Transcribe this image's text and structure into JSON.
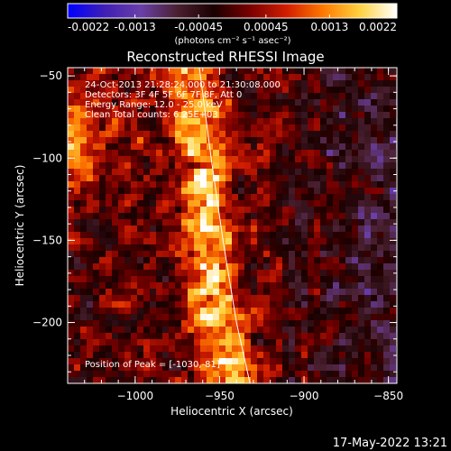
{
  "colors": {
    "background": "#000000",
    "foreground": "#ffffff",
    "colorbar_stops": [
      "#0000ff",
      "#3f1fb4",
      "#6a3fa8",
      "#4a2030",
      "#1a0000",
      "#7a0000",
      "#d21e00",
      "#ff7a00",
      "#ffd240",
      "#ffffff"
    ]
  },
  "colorbar": {
    "min": -0.0022,
    "max": 0.0022,
    "ticks": [
      {
        "value": -0.0022,
        "label": "-0.0022"
      },
      {
        "value": -0.0013,
        "label": "-0.0013"
      },
      {
        "value": -0.00045,
        "label": "-0.00045"
      },
      {
        "value": 0.00045,
        "label": "0.00045"
      },
      {
        "value": 0.0013,
        "label": "0.0013"
      },
      {
        "value": 0.0022,
        "label": "0.0022"
      }
    ],
    "unit_label": "(photons cm⁻² s⁻¹ asec⁻²)"
  },
  "chart_data": {
    "type": "heatmap",
    "title": "Reconstructed RHESSI Image",
    "xlabel": "Heliocentric X (arcsec)",
    "ylabel": "Heliocentric Y (arcsec)",
    "xlim": [
      -1040,
      -845
    ],
    "ylim": [
      -237,
      -45
    ],
    "x_ticks": [
      {
        "value": -1000,
        "label": "−1000"
      },
      {
        "value": -950,
        "label": "−950"
      },
      {
        "value": -900,
        "label": "−900"
      },
      {
        "value": -850,
        "label": "−850"
      }
    ],
    "y_ticks": [
      {
        "value": -50,
        "label": "−50"
      },
      {
        "value": -100,
        "label": "−100"
      },
      {
        "value": -150,
        "label": "−150"
      },
      {
        "value": -200,
        "label": "−200"
      }
    ],
    "info_lines": [
      "24-Oct-2013 21:28:24.000 to 21:30:08.000",
      "Detectors: 3F 4F 5F 6F 7F 8F, Att 0",
      "Energy Range: 12.0 - 25.0 keV",
      "Clean    Total counts: 6.25E+03"
    ],
    "peak_label": "Position of Peak = [-1030,-81]",
    "peak_position": [
      -1030,
      -81
    ],
    "limb_curve": [
      [
        -962,
        -45
      ],
      [
        -955,
        -100
      ],
      [
        -948,
        -150
      ],
      [
        -940,
        -200
      ],
      [
        -932,
        -237
      ]
    ]
  },
  "footer": {
    "datestamp": "17-May-2022 13:21"
  }
}
